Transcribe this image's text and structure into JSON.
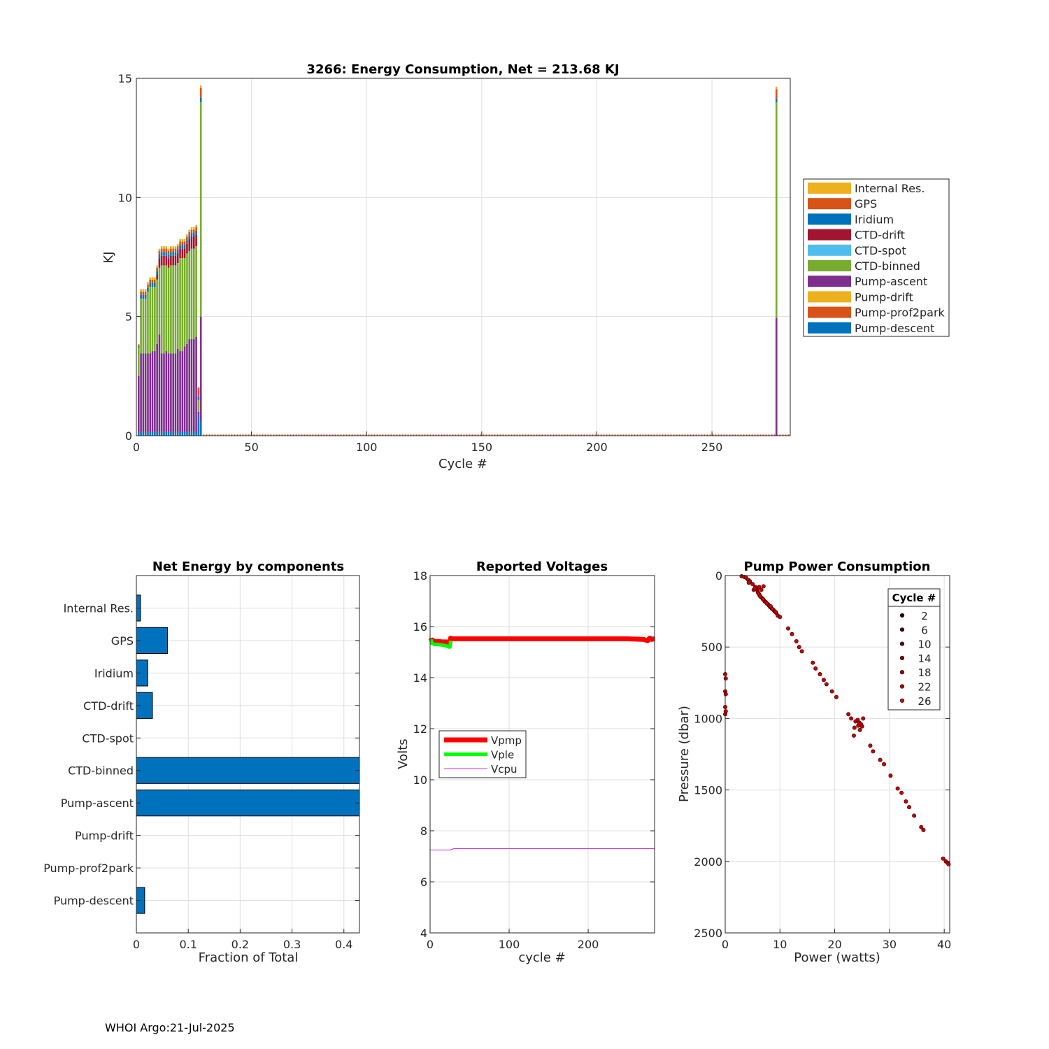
{
  "footer": "WHOI Argo:21-Jul-2025",
  "colors": {
    "Internal Res.": "#EDB120",
    "GPS": "#D95319",
    "Iridium": "#0072BD",
    "CTD-drift": "#A2142F",
    "CTD-spot": "#4DBEEE",
    "CTD-binned": "#77AC30",
    "Pump-ascent": "#7E2F8E",
    "Pump-drift": "#EDB120",
    "Pump-prof2park": "#D95319",
    "Pump-descent": "#0072BD",
    "Vpmp": "#FF0000",
    "Vple": "#00FF00",
    "Vcpu": "#CC33CC",
    "scatter": "#CC0000"
  },
  "chart_data": [
    {
      "id": "energy",
      "type": "bar",
      "stacked": true,
      "title": "3266: Energy Consumption,  Net = 213.68 KJ",
      "xlabel": "Cycle #",
      "ylabel": "KJ",
      "xlim": [
        0,
        284
      ],
      "ylim": [
        0,
        15
      ],
      "xticks": [
        0,
        50,
        100,
        150,
        200,
        250
      ],
      "yticks": [
        0,
        5,
        10,
        15
      ],
      "legend": [
        "Internal Res.",
        "GPS",
        "Iridium",
        "CTD-drift",
        "CTD-spot",
        "CTD-binned",
        "Pump-ascent",
        "Pump-drift",
        "Pump-prof2park",
        "Pump-descent"
      ],
      "legend_title": "",
      "stack_order": [
        "Pump-descent",
        "Pump-ascent",
        "CTD-binned",
        "CTD-drift",
        "Iridium",
        "GPS",
        "Internal Res."
      ],
      "x": [
        1,
        2,
        3,
        4,
        5,
        6,
        7,
        8,
        9,
        10,
        11,
        12,
        13,
        14,
        15,
        16,
        17,
        18,
        19,
        20,
        21,
        22,
        23,
        24,
        25,
        26,
        27,
        28,
        278
      ],
      "series": [
        {
          "name": "Pump-descent",
          "values": [
            0.15,
            0.15,
            0.15,
            0.15,
            0.15,
            0.15,
            0.15,
            0.15,
            0.15,
            0.15,
            0.15,
            0.15,
            0.15,
            0.15,
            0.15,
            0.15,
            0.15,
            0.15,
            0.15,
            0.15,
            0.15,
            0.15,
            0.15,
            0.15,
            0.15,
            0.15,
            0.9,
            0.6,
            0
          ]
        },
        {
          "name": "Pump-ascent",
          "values": [
            2.35,
            3.3,
            3.3,
            3.3,
            3.3,
            3.3,
            3.4,
            3.4,
            3.7,
            4.1,
            3.3,
            3.3,
            3.4,
            3.3,
            3.3,
            3.3,
            3.3,
            3.5,
            3.4,
            3.4,
            3.6,
            3.7,
            3.9,
            3.9,
            3.9,
            4.0,
            0.1,
            4.4,
            4.95
          ]
        },
        {
          "name": "CTD-binned",
          "values": [
            1.2,
            2.3,
            2.3,
            2.3,
            2.6,
            2.8,
            2.7,
            2.7,
            2.7,
            2.8,
            3.7,
            3.7,
            3.6,
            3.6,
            3.7,
            3.7,
            3.7,
            3.6,
            3.9,
            3.9,
            3.7,
            3.8,
            3.7,
            3.8,
            3.8,
            3.8,
            0.5,
            9.0,
            9.05
          ]
        },
        {
          "name": "CTD-drift",
          "values": [
            0,
            0,
            0,
            0,
            0,
            0,
            0,
            0,
            0.2,
            0.4,
            0.4,
            0.4,
            0.4,
            0.4,
            0.4,
            0.4,
            0.4,
            0.4,
            0.4,
            0.4,
            0.4,
            0.4,
            0.5,
            0.5,
            0.5,
            0.5,
            0,
            0,
            0
          ]
        },
        {
          "name": "Iridium",
          "values": [
            0.05,
            0.15,
            0.15,
            0.15,
            0.15,
            0.15,
            0.15,
            0.15,
            0.15,
            0.15,
            0.15,
            0.15,
            0.15,
            0.15,
            0.15,
            0.15,
            0.15,
            0.15,
            0.15,
            0.15,
            0.15,
            0.15,
            0.15,
            0.15,
            0.15,
            0.15,
            0.15,
            0.2,
            0.15
          ]
        },
        {
          "name": "GPS",
          "values": [
            0.05,
            0.15,
            0.15,
            0.15,
            0.15,
            0.15,
            0.15,
            0.15,
            0.15,
            0.15,
            0.15,
            0.15,
            0.15,
            0.15,
            0.15,
            0.15,
            0.15,
            0.15,
            0.15,
            0.15,
            0.15,
            0.15,
            0.15,
            0.15,
            0.15,
            0.15,
            0.35,
            0.4,
            0.4
          ]
        },
        {
          "name": "Internal Res.",
          "values": [
            0.05,
            0.1,
            0.1,
            0.1,
            0.1,
            0.1,
            0.1,
            0.1,
            0.1,
            0.1,
            0.1,
            0.1,
            0.1,
            0.1,
            0.1,
            0.1,
            0.1,
            0.1,
            0.1,
            0.1,
            0.1,
            0.1,
            0.1,
            0.1,
            0.1,
            0.1,
            0.05,
            0.1,
            0.1
          ]
        }
      ]
    },
    {
      "id": "components",
      "type": "bar",
      "orientation": "horizontal",
      "title": "Net Energy by components",
      "xlabel": "Fraction of Total",
      "ylabel": "",
      "xlim": [
        0,
        0.43
      ],
      "xticks": [
        0,
        0.1,
        0.2,
        0.3,
        0.4
      ],
      "xtick_labels": [
        "0",
        "0.1",
        "0.2",
        "0.3",
        "0.4"
      ],
      "categories": [
        "Internal Res.",
        "GPS",
        "Iridium",
        "CTD-drift",
        "CTD-spot",
        "CTD-binned",
        "Pump-ascent",
        "Pump-drift",
        "Pump-prof2park",
        "Pump-descent"
      ],
      "values": [
        0.008,
        0.06,
        0.022,
        0.031,
        0,
        0.43,
        0.43,
        0,
        0,
        0.016
      ]
    },
    {
      "id": "voltages",
      "type": "line",
      "title": "Reported Voltages",
      "xlabel": "cycle #",
      "ylabel": "Volts",
      "xlim": [
        0,
        284
      ],
      "ylim": [
        4,
        18
      ],
      "xticks": [
        0,
        100,
        200
      ],
      "yticks": [
        4,
        6,
        8,
        10,
        12,
        14,
        16,
        18
      ],
      "legend": [
        "Vpmp",
        "Vple",
        "Vcpu"
      ],
      "series": [
        {
          "name": "Vpmp",
          "x": [
            1,
            2,
            4,
            6,
            10,
            15,
            20,
            25,
            26,
            27,
            30,
            50,
            100,
            150,
            200,
            250,
            270,
            275,
            278,
            280,
            284
          ],
          "y": [
            15.55,
            15.45,
            15.45,
            15.42,
            15.42,
            15.4,
            15.4,
            15.38,
            15.55,
            15.52,
            15.52,
            15.52,
            15.52,
            15.52,
            15.52,
            15.52,
            15.5,
            15.45,
            15.55,
            15.5,
            15.52
          ]
        },
        {
          "name": "Vple",
          "x": [
            1,
            2,
            3,
            5,
            10,
            15,
            20,
            24,
            25,
            26
          ],
          "y": [
            15.5,
            15.35,
            15.35,
            15.3,
            15.3,
            15.28,
            15.25,
            15.2,
            15.2,
            15.45
          ]
        },
        {
          "name": "Vcpu",
          "x": [
            0,
            25,
            30,
            50,
            100,
            150,
            200,
            250,
            284
          ],
          "y": [
            7.25,
            7.25,
            7.3,
            7.3,
            7.3,
            7.3,
            7.3,
            7.3,
            7.3
          ]
        }
      ]
    },
    {
      "id": "pump",
      "type": "scatter",
      "title": "Pump Power Consumption",
      "xlabel": "Power (watts)",
      "ylabel": "Pressure (dbar)",
      "xlim": [
        0,
        41
      ],
      "ylim": [
        2500,
        0
      ],
      "xticks": [
        0,
        10,
        20,
        30,
        40
      ],
      "yticks": [
        0,
        500,
        1000,
        1500,
        2000,
        2500
      ],
      "legend_title": "Cycle #",
      "legend": [
        "2",
        "6",
        "10",
        "14",
        "18",
        "22",
        "26"
      ],
      "points": [
        [
          3.0,
          5
        ],
        [
          3.5,
          10
        ],
        [
          3.8,
          15
        ],
        [
          4.2,
          30
        ],
        [
          4.5,
          40
        ],
        [
          5.0,
          60
        ],
        [
          5.5,
          80
        ],
        [
          5.8,
          100
        ],
        [
          6.0,
          120
        ],
        [
          6.3,
          140
        ],
        [
          6.5,
          150
        ],
        [
          6.8,
          160
        ],
        [
          7.0,
          170
        ],
        [
          7.2,
          180
        ],
        [
          7.5,
          190
        ],
        [
          7.8,
          200
        ],
        [
          8.0,
          210
        ],
        [
          8.2,
          220
        ],
        [
          8.5,
          230
        ],
        [
          8.8,
          240
        ],
        [
          9.0,
          250
        ],
        [
          9.3,
          260
        ],
        [
          9.6,
          280
        ],
        [
          10.0,
          290
        ],
        [
          5.6,
          95
        ],
        [
          6.2,
          130
        ],
        [
          6.4,
          145
        ],
        [
          6.9,
          165
        ],
        [
          7.4,
          185
        ],
        [
          7.6,
          195
        ],
        [
          8.3,
          215
        ],
        [
          8.6,
          235
        ],
        [
          9.2,
          255
        ],
        [
          4.3,
          50
        ],
        [
          5.2,
          100
        ],
        [
          6.6,
          100
        ],
        [
          5.4,
          90
        ],
        [
          6.2,
          80
        ],
        [
          7.0,
          75
        ],
        [
          11.5,
          370
        ],
        [
          12.2,
          410
        ],
        [
          13.0,
          460
        ],
        [
          13.5,
          500
        ],
        [
          14.0,
          530
        ],
        [
          16.0,
          610
        ],
        [
          16.5,
          650
        ],
        [
          17.3,
          690
        ],
        [
          18.0,
          730
        ],
        [
          18.5,
          760
        ],
        [
          19.5,
          810
        ],
        [
          20.3,
          850
        ],
        [
          22.5,
          970
        ],
        [
          23.0,
          1000
        ],
        [
          23.8,
          1020
        ],
        [
          24.2,
          1010
        ],
        [
          24.5,
          1030
        ],
        [
          24.8,
          1040
        ],
        [
          25.0,
          1055
        ],
        [
          24.3,
          1050
        ],
        [
          23.6,
          1065
        ],
        [
          25.2,
          1000
        ],
        [
          24.6,
          1080
        ],
        [
          23.5,
          1120
        ],
        [
          26.5,
          1190
        ],
        [
          27.0,
          1230
        ],
        [
          28.3,
          1290
        ],
        [
          29.0,
          1320
        ],
        [
          30.2,
          1400
        ],
        [
          31.5,
          1490
        ],
        [
          32.2,
          1520
        ],
        [
          33.0,
          1580
        ],
        [
          33.6,
          1620
        ],
        [
          34.5,
          1680
        ],
        [
          35.8,
          1760
        ],
        [
          36.2,
          1780
        ],
        [
          39.8,
          1980
        ],
        [
          40.3,
          2000
        ],
        [
          40.6,
          2010
        ],
        [
          40.8,
          2020
        ],
        [
          0.0,
          690
        ],
        [
          0.1,
          720
        ],
        [
          0.0,
          810
        ],
        [
          0.1,
          830
        ],
        [
          0.0,
          920
        ],
        [
          0.1,
          950
        ],
        [
          0.0,
          970
        ]
      ]
    }
  ]
}
